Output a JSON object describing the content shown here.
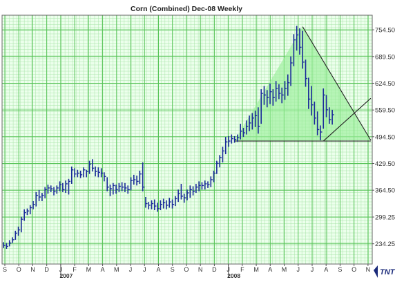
{
  "chart_data": {
    "type": "ohlc",
    "title": "Corn (Combined) Dec-08  Weekly",
    "xlabel": "",
    "ylabel": "",
    "ylim": [
      185,
      790
    ],
    "y_ticks": [
      "754.50",
      "689.50",
      "624.50",
      "559.50",
      "494.50",
      "429.50",
      "364.50",
      "299.25",
      "234.25"
    ],
    "month_labels": [
      "S",
      "O",
      "N",
      "D",
      "J",
      "F",
      "M",
      "A",
      "M",
      "J",
      "J",
      "A",
      "S",
      "O",
      "N",
      "D",
      "J",
      "F",
      "M",
      "A",
      "M",
      "J",
      "J",
      "A",
      "S",
      "O",
      "N"
    ],
    "year_labels": [
      {
        "label": "2007",
        "month_index": 4
      },
      {
        "label": "2008",
        "month_index": 16
      }
    ],
    "grid": true,
    "bars": [
      {
        "h": 238,
        "l": 224,
        "c": 230
      },
      {
        "h": 236,
        "l": 222,
        "c": 228
      },
      {
        "h": 243,
        "l": 228,
        "c": 236
      },
      {
        "h": 250,
        "l": 236,
        "c": 244
      },
      {
        "h": 266,
        "l": 244,
        "c": 260
      },
      {
        "h": 276,
        "l": 254,
        "c": 268
      },
      {
        "h": 300,
        "l": 262,
        "c": 294
      },
      {
        "h": 318,
        "l": 290,
        "c": 310
      },
      {
        "h": 320,
        "l": 304,
        "c": 314
      },
      {
        "h": 328,
        "l": 306,
        "c": 322
      },
      {
        "h": 338,
        "l": 318,
        "c": 330
      },
      {
        "h": 360,
        "l": 325,
        "c": 352
      },
      {
        "h": 365,
        "l": 338,
        "c": 348
      },
      {
        "h": 358,
        "l": 338,
        "c": 352
      },
      {
        "h": 372,
        "l": 345,
        "c": 366
      },
      {
        "h": 378,
        "l": 356,
        "c": 370
      },
      {
        "h": 376,
        "l": 360,
        "c": 368
      },
      {
        "h": 372,
        "l": 352,
        "c": 362
      },
      {
        "h": 376,
        "l": 356,
        "c": 370
      },
      {
        "h": 386,
        "l": 362,
        "c": 378
      },
      {
        "h": 382,
        "l": 360,
        "c": 366
      },
      {
        "h": 388,
        "l": 358,
        "c": 380
      },
      {
        "h": 392,
        "l": 354,
        "c": 386
      },
      {
        "h": 422,
        "l": 380,
        "c": 414
      },
      {
        "h": 418,
        "l": 396,
        "c": 404
      },
      {
        "h": 414,
        "l": 396,
        "c": 406
      },
      {
        "h": 412,
        "l": 394,
        "c": 402
      },
      {
        "h": 420,
        "l": 396,
        "c": 414
      },
      {
        "h": 414,
        "l": 396,
        "c": 410
      },
      {
        "h": 436,
        "l": 404,
        "c": 428
      },
      {
        "h": 440,
        "l": 410,
        "c": 418
      },
      {
        "h": 422,
        "l": 398,
        "c": 410
      },
      {
        "h": 420,
        "l": 396,
        "c": 408
      },
      {
        "h": 418,
        "l": 396,
        "c": 406
      },
      {
        "h": 408,
        "l": 386,
        "c": 398
      },
      {
        "h": 396,
        "l": 362,
        "c": 372
      },
      {
        "h": 378,
        "l": 350,
        "c": 368
      },
      {
        "h": 382,
        "l": 354,
        "c": 376
      },
      {
        "h": 378,
        "l": 356,
        "c": 366
      },
      {
        "h": 382,
        "l": 360,
        "c": 374
      },
      {
        "h": 384,
        "l": 362,
        "c": 372
      },
      {
        "h": 382,
        "l": 360,
        "c": 370
      },
      {
        "h": 376,
        "l": 356,
        "c": 366
      },
      {
        "h": 396,
        "l": 364,
        "c": 388
      },
      {
        "h": 402,
        "l": 378,
        "c": 390
      },
      {
        "h": 400,
        "l": 376,
        "c": 386
      },
      {
        "h": 412,
        "l": 380,
        "c": 404
      },
      {
        "h": 432,
        "l": 362,
        "c": 372
      },
      {
        "h": 348,
        "l": 322,
        "c": 332
      },
      {
        "h": 336,
        "l": 318,
        "c": 328
      },
      {
        "h": 340,
        "l": 318,
        "c": 332
      },
      {
        "h": 342,
        "l": 316,
        "c": 326
      },
      {
        "h": 334,
        "l": 312,
        "c": 320
      },
      {
        "h": 340,
        "l": 316,
        "c": 330
      },
      {
        "h": 344,
        "l": 320,
        "c": 334
      },
      {
        "h": 340,
        "l": 318,
        "c": 328
      },
      {
        "h": 346,
        "l": 322,
        "c": 336
      },
      {
        "h": 342,
        "l": 320,
        "c": 330
      },
      {
        "h": 350,
        "l": 326,
        "c": 344
      },
      {
        "h": 366,
        "l": 336,
        "c": 356
      },
      {
        "h": 380,
        "l": 342,
        "c": 350
      },
      {
        "h": 356,
        "l": 334,
        "c": 346
      },
      {
        "h": 366,
        "l": 340,
        "c": 358
      },
      {
        "h": 376,
        "l": 346,
        "c": 366
      },
      {
        "h": 374,
        "l": 352,
        "c": 362
      },
      {
        "h": 380,
        "l": 358,
        "c": 372
      },
      {
        "h": 386,
        "l": 362,
        "c": 376
      },
      {
        "h": 384,
        "l": 366,
        "c": 376
      },
      {
        "h": 388,
        "l": 366,
        "c": 380
      },
      {
        "h": 386,
        "l": 370,
        "c": 378
      },
      {
        "h": 398,
        "l": 372,
        "c": 390
      },
      {
        "h": 412,
        "l": 384,
        "c": 406
      },
      {
        "h": 436,
        "l": 404,
        "c": 430
      },
      {
        "h": 450,
        "l": 420,
        "c": 444
      },
      {
        "h": 470,
        "l": 432,
        "c": 460
      },
      {
        "h": 494,
        "l": 452,
        "c": 482
      },
      {
        "h": 496,
        "l": 470,
        "c": 484
      },
      {
        "h": 500,
        "l": 478,
        "c": 490
      },
      {
        "h": 496,
        "l": 480,
        "c": 488
      },
      {
        "h": 500,
        "l": 482,
        "c": 492
      },
      {
        "h": 526,
        "l": 488,
        "c": 508
      },
      {
        "h": 516,
        "l": 494,
        "c": 504
      },
      {
        "h": 534,
        "l": 500,
        "c": 520
      },
      {
        "h": 546,
        "l": 508,
        "c": 528
      },
      {
        "h": 552,
        "l": 512,
        "c": 540
      },
      {
        "h": 558,
        "l": 518,
        "c": 546
      },
      {
        "h": 566,
        "l": 502,
        "c": 520
      },
      {
        "h": 610,
        "l": 526,
        "c": 600
      },
      {
        "h": 618,
        "l": 572,
        "c": 596
      },
      {
        "h": 608,
        "l": 566,
        "c": 590
      },
      {
        "h": 624,
        "l": 574,
        "c": 604
      },
      {
        "h": 610,
        "l": 570,
        "c": 590
      },
      {
        "h": 630,
        "l": 580,
        "c": 612
      },
      {
        "h": 622,
        "l": 586,
        "c": 600
      },
      {
        "h": 614,
        "l": 576,
        "c": 596
      },
      {
        "h": 630,
        "l": 584,
        "c": 612
      },
      {
        "h": 646,
        "l": 594,
        "c": 626
      },
      {
        "h": 690,
        "l": 618,
        "c": 674
      },
      {
        "h": 744,
        "l": 666,
        "c": 730
      },
      {
        "h": 764,
        "l": 704,
        "c": 742
      },
      {
        "h": 758,
        "l": 694,
        "c": 712
      },
      {
        "h": 752,
        "l": 660,
        "c": 676
      },
      {
        "h": 682,
        "l": 616,
        "c": 636
      },
      {
        "h": 638,
        "l": 562,
        "c": 586
      },
      {
        "h": 618,
        "l": 546,
        "c": 572
      },
      {
        "h": 580,
        "l": 524,
        "c": 540
      },
      {
        "h": 556,
        "l": 498,
        "c": 512
      },
      {
        "h": 522,
        "l": 486,
        "c": 506
      },
      {
        "h": 612,
        "l": 514,
        "c": 596
      },
      {
        "h": 596,
        "l": 542,
        "c": 560
      },
      {
        "h": 566,
        "l": 526,
        "c": 536
      },
      {
        "h": 560,
        "l": 524,
        "c": 548
      }
    ],
    "trendlines": [
      {
        "name": "triangle-peak-to-apex",
        "from": {
          "bar": 101,
          "value": 762
        },
        "to": {
          "bar": 124,
          "value": 486
        }
      },
      {
        "name": "triangle-base",
        "from": {
          "bar": 78,
          "value": 484
        },
        "to": {
          "bar": 124,
          "value": 484
        }
      },
      {
        "name": "triangle-left-side",
        "from": {
          "bar": 78,
          "value": 486
        },
        "to": {
          "bar": 101,
          "value": 762
        }
      },
      {
        "name": "rising-support",
        "from": {
          "bar": 108,
          "value": 484
        },
        "to": {
          "bar": 124,
          "value": 588
        }
      }
    ],
    "logo": "TNT",
    "colors": {
      "background": "#ffffff",
      "plot_bg": "#ecffec",
      "grid_minor": "#a8e4a8",
      "grid_major": "#56c356",
      "bars": "#1a2a9a",
      "triangle_fill": "#99ee99",
      "trendline": "#222222"
    }
  }
}
